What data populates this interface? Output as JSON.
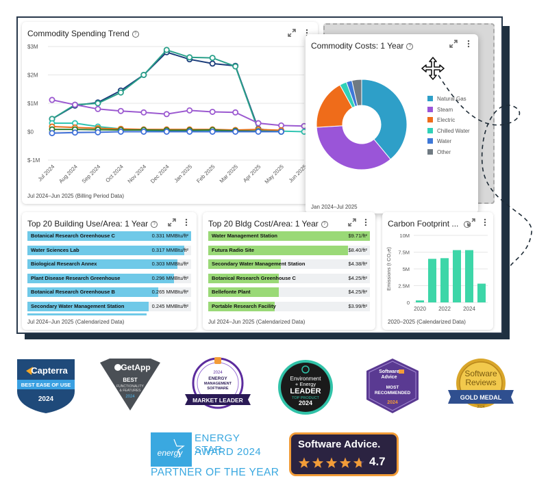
{
  "spending_trend": {
    "title": "Commodity Spending Trend",
    "footer": "Jul 2024–Jun 2025 (Billing Period Data)",
    "y_ticks": [
      "$3M",
      "$2M",
      "$1M",
      "$0",
      "$-1M"
    ],
    "chart_data": {
      "type": "line",
      "categories": [
        "Jul 2024",
        "Aug 2024",
        "Sep 2024",
        "Oct 2024",
        "Nov 2024",
        "Dec 2024",
        "Jan 2025",
        "Feb 2025",
        "Mar 2025",
        "Apr 2025",
        "May 2025",
        "Jun 2025"
      ],
      "ylim": [
        -1,
        3
      ],
      "series": [
        {
          "color": "#1a3c7a",
          "values": [
            0.45,
            0.92,
            1.03,
            1.45,
            2.0,
            2.8,
            2.55,
            2.4,
            2.32,
            0.1,
            0.0,
            null
          ]
        },
        {
          "color": "#2aa08a",
          "values": [
            0.45,
            0.95,
            1.0,
            1.38,
            2.0,
            2.88,
            2.62,
            2.6,
            2.3,
            0.05,
            0.0,
            null
          ]
        },
        {
          "color": "#9b59d0",
          "values": [
            1.12,
            0.95,
            0.8,
            0.73,
            0.68,
            0.62,
            0.75,
            0.7,
            0.68,
            0.3,
            0.22,
            0.2
          ]
        },
        {
          "color": "#2fc4b2",
          "values": [
            0.3,
            0.3,
            0.18,
            0.1,
            0.05,
            0.03,
            0.05,
            0.05,
            0.02,
            0.02,
            0.02,
            0.0
          ]
        },
        {
          "color": "#e6701a",
          "values": [
            0.18,
            0.15,
            0.12,
            0.1,
            0.08,
            0.08,
            0.08,
            0.08,
            0.06,
            0.08,
            0.05,
            null
          ]
        },
        {
          "color": "#2e7d32",
          "values": [
            0.08,
            0.08,
            0.07,
            0.06,
            0.06,
            0.05,
            0.05,
            0.06,
            0.03,
            0.02,
            0.0,
            null
          ]
        },
        {
          "color": "#3e6fd8",
          "values": [
            -0.05,
            -0.03,
            -0.02,
            0.0,
            0.0,
            0.0,
            0.0,
            0.0,
            0.0,
            0.0,
            0.0,
            null
          ]
        }
      ]
    }
  },
  "commodity_costs": {
    "title": "Commodity Costs: 1 Year",
    "footer": "Jan 2024–Jul 2025",
    "chart_data": {
      "type": "pie",
      "labels": [
        "Natural Gas",
        "Steam",
        "Electric",
        "Chilled Water",
        "Water",
        "Other"
      ],
      "values": [
        39,
        35,
        18,
        2.5,
        2,
        3.5
      ],
      "colors": [
        "#2e9fc8",
        "#9a55d8",
        "#ef6c1a",
        "#30d1b8",
        "#3e78d8",
        "#6f7a82"
      ]
    }
  },
  "building_use": {
    "title": "Top 20 Building Use/Area: 1 Year",
    "footer": "Jul 2024–Jun 2025 (Calendarized Data)",
    "color": "#6fc9e8",
    "rows": [
      {
        "label": "Botanical Research Greenhouse C",
        "value": "0.331 MMBtu/ft²",
        "fraction": 1.0
      },
      {
        "label": "Water Sciences Lab",
        "value": "0.317 MMBtu/ft²",
        "fraction": 0.958
      },
      {
        "label": "Biological Research Annex",
        "value": "0.303 MMBtu/ft²",
        "fraction": 0.915
      },
      {
        "label": "Plant Disease Research Greenhouse",
        "value": "0.296 MMBtu/ft²",
        "fraction": 0.894
      },
      {
        "label": "Botanical Research Greenhouse B",
        "value": "0.265 MMBtu/ft²",
        "fraction": 0.8
      },
      {
        "label": "Secondary Water Management Station",
        "value": "0.245 MMBtu/ft²",
        "fraction": 0.74
      }
    ]
  },
  "bldg_cost": {
    "title": "Top 20 Bldg Cost/Area: 1 Year",
    "footer": "Jul 2024–Jun 2025 (Calendarized Data)",
    "color": "#9ad977",
    "rows": [
      {
        "label": "Water Management Station",
        "value": "$9.71/ft²",
        "fraction": 1.0
      },
      {
        "label": "Futura Radio Site",
        "value": "$8.40/ft²",
        "fraction": 0.865
      },
      {
        "label": "Secondary Water Management Station",
        "value": "$4.38/ft²",
        "fraction": 0.451
      },
      {
        "label": "Botanical Research Greenhouse C",
        "value": "$4.25/ft²",
        "fraction": 0.438
      },
      {
        "label": "Bellefonte Plant",
        "value": "$4.25/ft²",
        "fraction": 0.438
      },
      {
        "label": "Portable Research Facility",
        "value": "$3.99/ft²",
        "fraction": 0.411
      }
    ]
  },
  "carbon": {
    "title": "Carbon Footprint ...",
    "footer": "2020–2025 (Calendarized Data)",
    "ylabel": "Emissions (t CO₂e)",
    "y_ticks": [
      "10M",
      "7.5M",
      "5M",
      "2.5M",
      "0"
    ],
    "x_ticks": [
      "2020",
      "2022",
      "2024"
    ],
    "chart_data": {
      "type": "bar",
      "categories": [
        "2020",
        "2021",
        "2022",
        "2023",
        "2024",
        "2025"
      ],
      "values": [
        0.3,
        6.5,
        6.6,
        7.8,
        7.8,
        2.8
      ],
      "ylim": [
        0,
        10
      ],
      "color": "#3dd6a8"
    }
  },
  "badges": {
    "capterra": {
      "brand": "Capterra",
      "line1": "BEST EASE OF USE",
      "year": "2024"
    },
    "getapp": {
      "brand": "GetApp",
      "line1": "BEST",
      "line2": "FUNCTIONALITY",
      "line3": "& FEATURES",
      "year": "2024"
    },
    "ems": {
      "year": "2024",
      "line1": "ENERGY",
      "line2": "MANAGEMENT",
      "line3": "SOFTWARE",
      "ribbon": "MARKET LEADER"
    },
    "env": {
      "line1": "Environment",
      "line2": "+ Energy",
      "line3": "LEADER",
      "line4": "TOP PRODUCT",
      "year": "2024"
    },
    "sa_rec": {
      "brand1": "Software",
      "brand2": "Advice",
      "line1": "MOST",
      "line2": "RECOMMENDED",
      "year": "2024"
    },
    "sr": {
      "line1": "Software",
      "line2": "Reviews",
      "ribbon": "GOLD MEDAL",
      "year": "2024"
    },
    "energystar": {
      "line1": "ENERGY STAR",
      "line2": "AWARD 2024",
      "line3": "PARTNER OF THE YEAR",
      "logo": "energy"
    },
    "sa_rating": {
      "brand": "Software Advice.",
      "rating": "4.7",
      "stars": 4.7
    }
  }
}
